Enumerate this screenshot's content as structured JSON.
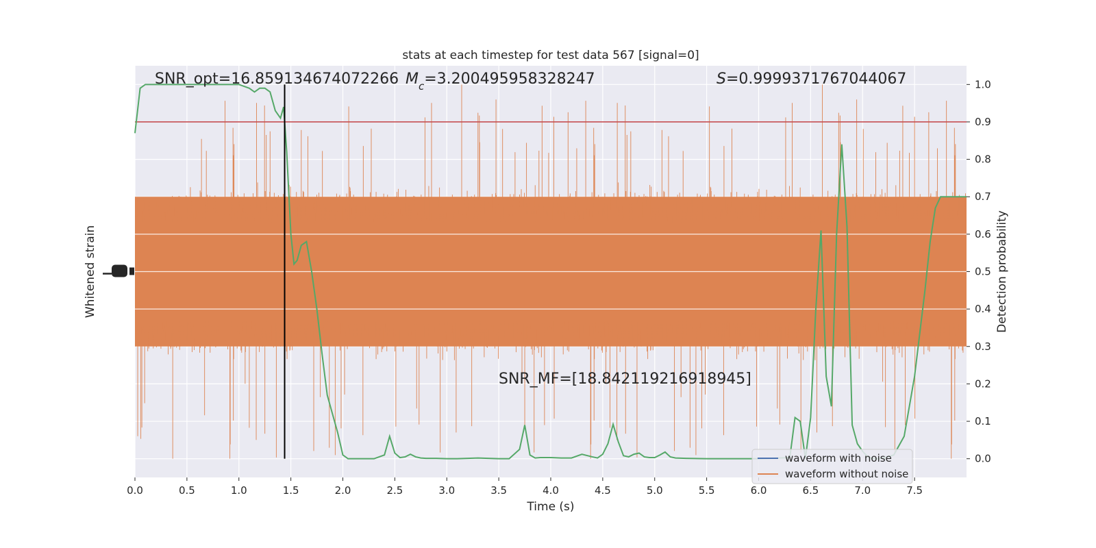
{
  "chart_data": {
    "type": "line",
    "title": "stats at each timestep for test data 567 [signal=0]",
    "xlabel": "Time (s)",
    "ylabel_left": "Whitened strain",
    "ylabel_right": "Detection probability",
    "xlim": [
      0.0,
      8.0
    ],
    "ylim_right": [
      -0.05,
      1.05
    ],
    "x_ticks": [
      "0.0",
      "0.5",
      "1.0",
      "1.5",
      "2.0",
      "2.5",
      "3.0",
      "3.5",
      "4.0",
      "4.5",
      "5.0",
      "5.5",
      "6.0",
      "6.5",
      "7.0",
      "7.5"
    ],
    "x_tick_values": [
      0.0,
      0.5,
      1.0,
      1.5,
      2.0,
      2.5,
      3.0,
      3.5,
      4.0,
      4.5,
      5.0,
      5.5,
      6.0,
      6.5,
      7.0,
      7.5
    ],
    "y_ticks_right": [
      "0.0",
      "0.1",
      "0.2",
      "0.3",
      "0.4",
      "0.5",
      "0.6",
      "0.7",
      "0.8",
      "0.9",
      "1.0"
    ],
    "y_tick_values_right": [
      0.0,
      0.1,
      0.2,
      0.3,
      0.4,
      0.5,
      0.6,
      0.7,
      0.8,
      0.9,
      1.0
    ],
    "grid": true,
    "legend_position": "lower-right",
    "annotations": {
      "snr_opt": "SNR_opt=16.859134674072266",
      "mc_symbol": "M",
      "mc_sub": "c",
      "mc_value": "=3.200495958328247",
      "s_symbol": "S",
      "s_value": "=0.9999371767044067",
      "snr_mf": "SNR_MF=[18.842119216918945]"
    },
    "threshold": 0.9,
    "marker_time": 1.44,
    "series": [
      {
        "name": "waveform with noise",
        "color": "#4c72b0"
      },
      {
        "name": "waveform without noise",
        "color": "#dd8452",
        "render": "dense noise band, approx. 0.30–0.70 on probability axis with spikes to 0.0–1.0"
      },
      {
        "color": "#55a868",
        "x": [
          0.0,
          0.05,
          0.1,
          0.2,
          0.3,
          0.5,
          0.7,
          0.9,
          1.0,
          1.1,
          1.15,
          1.2,
          1.25,
          1.3,
          1.35,
          1.4,
          1.43,
          1.46,
          1.5,
          1.53,
          1.56,
          1.6,
          1.65,
          1.7,
          1.75,
          1.8,
          1.85,
          1.9,
          1.95,
          2.0,
          2.05,
          2.1,
          2.15,
          2.2,
          2.3,
          2.4,
          2.45,
          2.5,
          2.55,
          2.6,
          2.65,
          2.7,
          2.75,
          2.8,
          2.85,
          2.9,
          3.0,
          3.1,
          3.3,
          3.5,
          3.6,
          3.7,
          3.75,
          3.8,
          3.85,
          3.9,
          4.0,
          4.1,
          4.2,
          4.3,
          4.4,
          4.45,
          4.5,
          4.55,
          4.6,
          4.65,
          4.7,
          4.75,
          4.8,
          4.85,
          4.9,
          4.95,
          5.0,
          5.05,
          5.1,
          5.15,
          5.2,
          5.3,
          5.5,
          5.8,
          6.0,
          6.2,
          6.3,
          6.35,
          6.4,
          6.45,
          6.5,
          6.55,
          6.6,
          6.65,
          6.7,
          6.75,
          6.8,
          6.85,
          6.9,
          6.95,
          7.0,
          7.05,
          7.1,
          7.15,
          7.2,
          7.3,
          7.4,
          7.5,
          7.6,
          7.65,
          7.7,
          7.75,
          7.8,
          7.85,
          7.9,
          8.0
        ],
        "values": [
          0.87,
          0.99,
          1.0,
          1.0,
          1.0,
          1.0,
          1.0,
          1.0,
          1.0,
          0.99,
          0.98,
          0.99,
          0.99,
          0.98,
          0.93,
          0.91,
          0.94,
          0.82,
          0.6,
          0.52,
          0.53,
          0.57,
          0.58,
          0.5,
          0.4,
          0.28,
          0.17,
          0.12,
          0.07,
          0.01,
          0.0,
          0.0,
          0.0,
          0.0,
          0.0,
          0.01,
          0.06,
          0.015,
          0.003,
          0.005,
          0.012,
          0.005,
          0.002,
          0.001,
          0.001,
          0.001,
          0.0,
          0.0,
          0.002,
          0.0,
          0.0,
          0.025,
          0.09,
          0.01,
          0.002,
          0.003,
          0.003,
          0.002,
          0.002,
          0.012,
          0.005,
          0.002,
          0.012,
          0.04,
          0.092,
          0.045,
          0.008,
          0.005,
          0.012,
          0.015,
          0.005,
          0.003,
          0.003,
          0.01,
          0.018,
          0.005,
          0.002,
          0.001,
          0.0,
          0.0,
          0.0,
          0.002,
          0.003,
          0.11,
          0.1,
          0.0,
          0.11,
          0.4,
          0.61,
          0.22,
          0.14,
          0.6,
          0.84,
          0.62,
          0.09,
          0.04,
          0.02,
          0.005,
          0.0,
          0.0,
          0.002,
          0.01,
          0.06,
          0.22,
          0.45,
          0.58,
          0.67,
          0.7,
          0.7,
          0.7,
          0.7,
          0.7
        ],
        "x_note": "detection probability curve (no legend entry)"
      }
    ],
    "colors": {
      "plot_bg": "#eaeaf2",
      "grid": "#ffffff",
      "threshold_line": "#c44e52",
      "marker_line": "#000000"
    }
  }
}
